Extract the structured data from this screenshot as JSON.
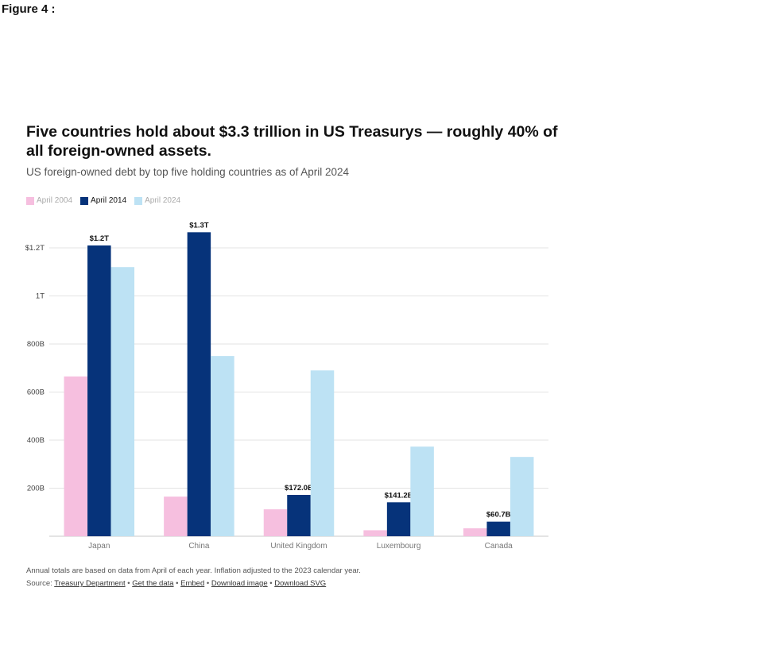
{
  "figure_label": "Figure 4 :",
  "chart_data": {
    "type": "bar",
    "title": "Five countries hold about $3.3 trillion in US Treasurys — roughly 40% of all foreign-owned assets.",
    "subtitle": "US foreign-owned debt by top five holding countries as of April 2024",
    "categories": [
      "Japan",
      "China",
      "United Kingdom",
      "Luxembourg",
      "Canada"
    ],
    "series": [
      {
        "name": "April 2004",
        "color": "#f6bfdf",
        "values": [
          665,
          165,
          112,
          25,
          33
        ]
      },
      {
        "name": "April 2014",
        "color": "#06337a",
        "values": [
          1210,
          1265,
          172.0,
          141.2,
          60.7
        ],
        "data_labels": [
          "$1.2T",
          "$1.3T",
          "$172.0B",
          "$141.2B",
          "$60.7B"
        ]
      },
      {
        "name": "April 2024",
        "color": "#bde2f4",
        "values": [
          1120,
          750,
          690,
          373,
          330
        ]
      }
    ],
    "y_ticks": [
      {
        "value": 200,
        "label": "200B"
      },
      {
        "value": 400,
        "label": "400B"
      },
      {
        "value": 600,
        "label": "600B"
      },
      {
        "value": 800,
        "label": "800B"
      },
      {
        "value": 1000,
        "label": "1T"
      },
      {
        "value": 1200,
        "label": "$1.2T"
      }
    ],
    "ylim": [
      0,
      1300
    ],
    "grid": true,
    "legend_position": "top-left",
    "footnote": "Annual totals are based on data from April of each year. Inflation adjusted to the 2023 calendar year.",
    "source": {
      "prefix": "Source:",
      "links": [
        "Treasury Department",
        "Get the data",
        "Embed",
        "Download image",
        "Download SVG"
      ],
      "separator": "•"
    }
  }
}
